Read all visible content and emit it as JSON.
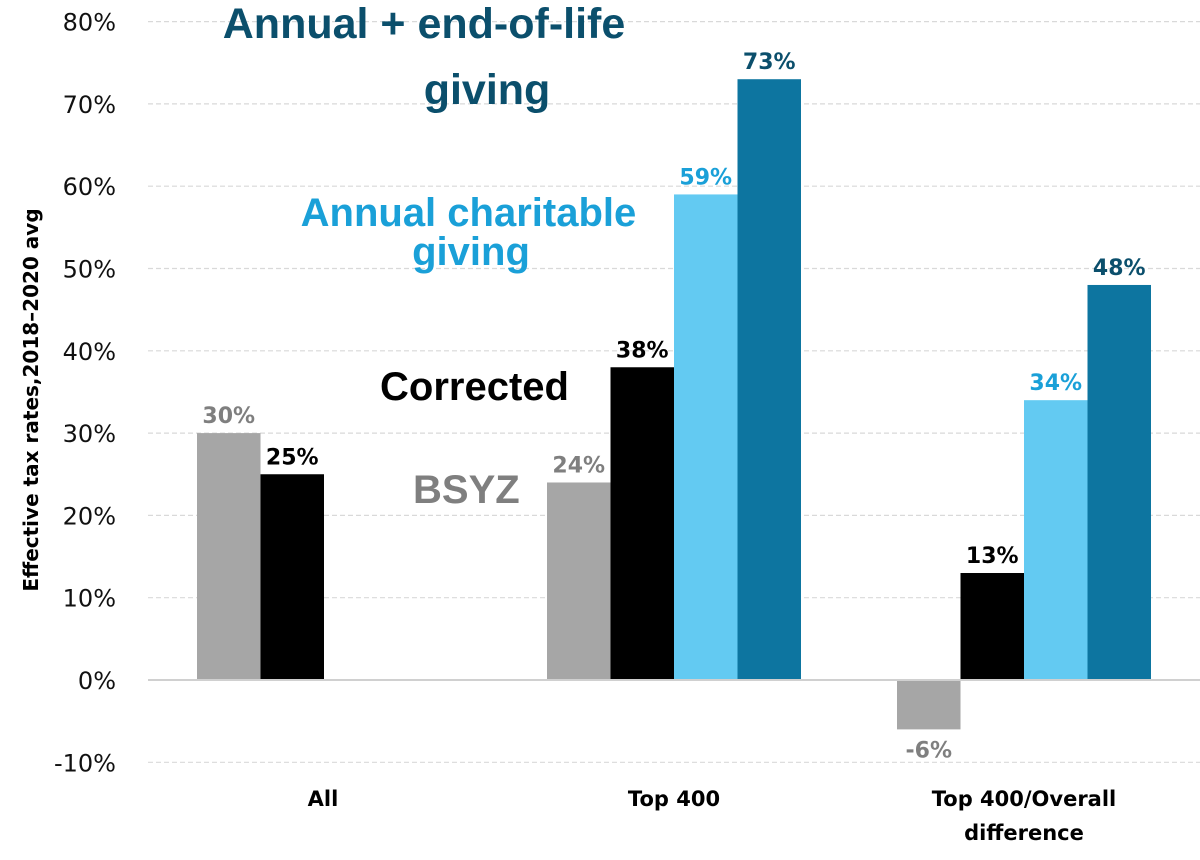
{
  "chart_data": {
    "type": "bar",
    "title": "",
    "xlabel": "",
    "ylabel": "Effective tax rates,2018–2020 avg",
    "ylim": [
      -10,
      80
    ],
    "yticks": [
      -10,
      0,
      10,
      20,
      30,
      40,
      50,
      60,
      70,
      80
    ],
    "ytick_labels": [
      "-10%",
      "0%",
      "10%",
      "20%",
      "30%",
      "40%",
      "50%",
      "60%",
      "70%",
      "80%"
    ],
    "grid": true,
    "categories": [
      "All",
      "Top 400",
      "Top 400/Overall difference"
    ],
    "category_lines": [
      [
        "All"
      ],
      [
        "Top 400"
      ],
      [
        "Top 400/Overall",
        "difference"
      ]
    ],
    "series": [
      {
        "name": "BSYZ",
        "color": "#a6a6a6",
        "label_color": "#7f7f7f",
        "values": [
          30,
          24,
          -6
        ],
        "labels": [
          "30%",
          "24%",
          "-6%"
        ]
      },
      {
        "name": "Corrected",
        "color": "#000000",
        "label_color": "#000000",
        "values": [
          25,
          38,
          13
        ],
        "labels": [
          "25%",
          "38%",
          "13%"
        ]
      },
      {
        "name": "Annual charitable giving",
        "color": "#63caf2",
        "label_color": "#1aa0d8",
        "values": [
          null,
          59,
          34
        ],
        "labels": [
          null,
          "59%",
          "34%"
        ]
      },
      {
        "name": "Annual + end-of-life giving",
        "color": "#0d75a0",
        "label_color": "#0b4f6c",
        "values": [
          null,
          73,
          48
        ],
        "labels": [
          null,
          "73%",
          "48%"
        ]
      }
    ],
    "annotations": [
      {
        "lines": [
          "Annual + end-of-life",
          "giving"
        ],
        "color": "#0b4f6c",
        "series": "Annual + end-of-life giving"
      },
      {
        "lines": [
          "Annual charitable",
          "giving"
        ],
        "color": "#1aa0d8",
        "series": "Annual charitable giving"
      },
      {
        "lines": [
          "Corrected"
        ],
        "color": "#000000",
        "series": "Corrected"
      },
      {
        "lines": [
          "BSYZ"
        ],
        "color": "#7f7f7f",
        "series": "BSYZ"
      }
    ],
    "legend": "inline-annotations"
  }
}
